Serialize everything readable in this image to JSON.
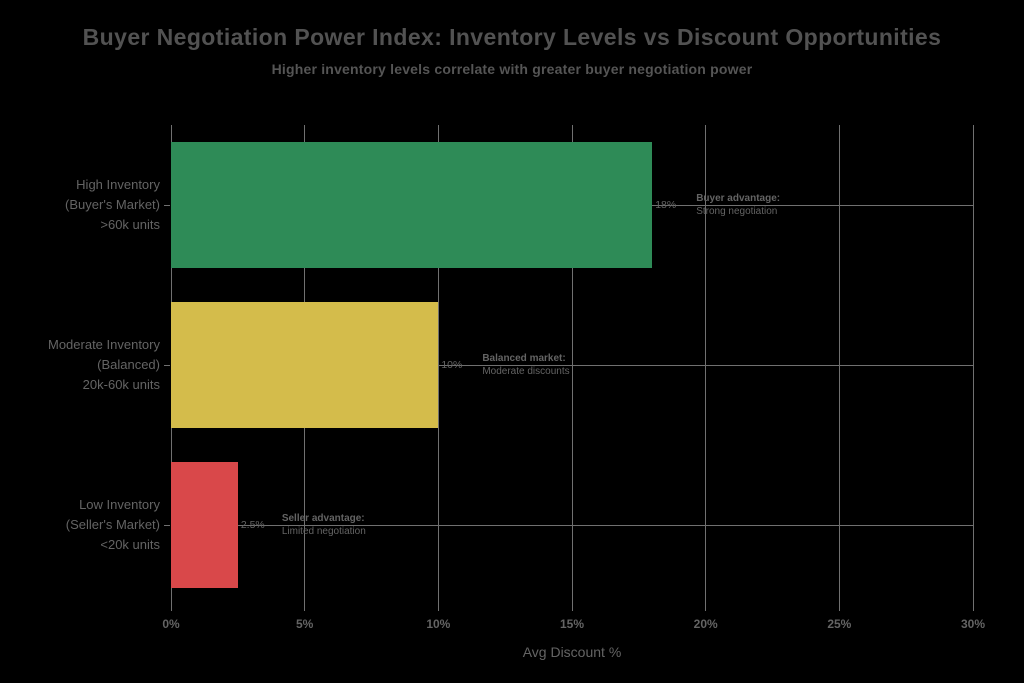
{
  "chart_data": {
    "type": "bar",
    "orientation": "horizontal",
    "title": "Buyer Negotiation Power Index: Inventory Levels vs Discount Opportunities",
    "subtitle": "Higher inventory levels correlate with greater buyer negotiation power",
    "xlabel": "Avg Discount %",
    "xlim": [
      0,
      30
    ],
    "xticks": [
      0,
      5,
      10,
      15,
      20,
      25,
      30
    ],
    "xtick_labels": [
      "0%",
      "5%",
      "10%",
      "15%",
      "20%",
      "25%",
      "30%"
    ],
    "grid": true,
    "legend": false,
    "rows": [
      {
        "id": "high-inventory",
        "category_lines": [
          "High Inventory",
          "(Buyer's Market)",
          ">60k units"
        ],
        "value": 18,
        "value_label": "18%",
        "color": "#2e8b57",
        "annotation_bold": "Buyer advantage:",
        "annotation_text": "Strong negotiation"
      },
      {
        "id": "moderate-inventory",
        "category_lines": [
          "Moderate Inventory",
          "(Balanced)",
          "20k-60k units"
        ],
        "value": 10,
        "value_label": "10%",
        "color": "#d4bc4b",
        "annotation_bold": "Balanced market:",
        "annotation_text": "Moderate discounts"
      },
      {
        "id": "low-inventory",
        "category_lines": [
          "Low Inventory",
          "(Seller's Market)",
          "<20k units"
        ],
        "value": 2.5,
        "value_label": "2.5%",
        "color": "#d9484a",
        "annotation_bold": "Seller advantage:",
        "annotation_text": "Limited negotiation"
      }
    ],
    "colors": {
      "background": "#000000",
      "title_text": "#525252",
      "subtitle_text": "#555555",
      "axis_text": "#646464",
      "gridline": "#707070"
    }
  }
}
